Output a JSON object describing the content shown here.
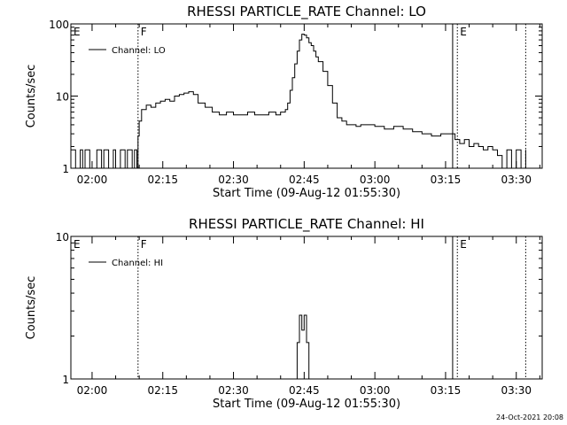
{
  "footer": {
    "timestamp": "24-Oct-2021 20:08"
  },
  "chart_data": [
    {
      "type": "line",
      "title": "RHESSI PARTICLE_RATE Channel: LO",
      "xlabel": "Start Time (09-Aug-12 01:55:30)",
      "ylabel": "Counts/sec",
      "yscale": "log",
      "ylim": [
        1,
        100
      ],
      "yticks": [
        {
          "value": 1,
          "label": "1"
        },
        {
          "value": 10,
          "label": "10"
        },
        {
          "value": 100,
          "label": "100"
        }
      ],
      "xlim": [
        "01:55:30",
        "03:35:30"
      ],
      "xticks": [
        "02:00",
        "02:15",
        "02:30",
        "02:45",
        "03:00",
        "03:15",
        "03:30"
      ],
      "legend": {
        "label": "Channel: LO",
        "position": "top-left"
      },
      "series": [
        {
          "name": "Channel: LO",
          "x": [
            "01:55:30",
            "01:56:30",
            "01:57:30",
            "01:58:00",
            "01:58:30",
            "01:59:30",
            "02:00:00",
            "02:01:00",
            "02:02:00",
            "02:02:30",
            "02:03:30",
            "02:04:30",
            "02:05:00",
            "02:06:00",
            "02:07:00",
            "02:07:30",
            "02:08:30",
            "02:09:00",
            "02:09:30",
            "02:09:45",
            "02:10:00",
            "02:10:30",
            "02:11:30",
            "02:12:30",
            "02:13:30",
            "02:14:30",
            "02:15:30",
            "02:16:30",
            "02:17:30",
            "02:18:30",
            "02:19:30",
            "02:20:30",
            "02:21:30",
            "02:22:30",
            "02:24:00",
            "02:25:30",
            "02:27:00",
            "02:28:30",
            "02:30:00",
            "02:31:30",
            "02:33:00",
            "02:34:30",
            "02:36:00",
            "02:37:30",
            "02:39:00",
            "02:40:00",
            "02:41:00",
            "02:41:30",
            "02:42:00",
            "02:42:30",
            "02:43:00",
            "02:43:30",
            "02:44:00",
            "02:44:30",
            "02:45:00",
            "02:45:30",
            "02:46:00",
            "02:46:30",
            "02:47:00",
            "02:47:30",
            "02:48:00",
            "02:49:00",
            "02:50:00",
            "02:51:00",
            "02:52:00",
            "02:53:00",
            "02:54:00",
            "02:55:00",
            "02:56:00",
            "02:57:00",
            "02:58:00",
            "03:00:00",
            "03:02:00",
            "03:04:00",
            "03:06:00",
            "03:08:00",
            "03:10:00",
            "03:12:00",
            "03:14:00",
            "03:16:00",
            "03:17:00",
            "03:18:00",
            "03:19:00",
            "03:20:00",
            "03:21:00",
            "03:22:00",
            "03:23:00",
            "03:24:00",
            "03:25:00",
            "03:26:00",
            "03:27:00",
            "03:28:00",
            "03:29:00",
            "03:30:00",
            "03:31:00",
            "03:32:00"
          ],
          "y": [
            1.8,
            1,
            1.8,
            1,
            1.8,
            1,
            1,
            1.8,
            1,
            1.8,
            1,
            1.8,
            1,
            1.8,
            1,
            1.8,
            1,
            1.8,
            1,
            2.8,
            4.5,
            6.5,
            7.5,
            7,
            8,
            8.5,
            9,
            8.5,
            10,
            10.5,
            11,
            11.5,
            10.5,
            8,
            7,
            6,
            5.5,
            6,
            5.5,
            5.5,
            6,
            5.5,
            5.5,
            6,
            5.5,
            6,
            6.5,
            8,
            12,
            18,
            28,
            42,
            60,
            72,
            70,
            64,
            55,
            50,
            42,
            35,
            30,
            22,
            14,
            8,
            5,
            4.5,
            4,
            4,
            3.8,
            4,
            4,
            3.8,
            3.5,
            3.8,
            3.5,
            3.2,
            3,
            2.8,
            3,
            3,
            2.5,
            2.2,
            2.5,
            2,
            2.2,
            2,
            1.8,
            2,
            1.8,
            1.5,
            1,
            1.8,
            1,
            1.8,
            1,
            1.8
          ]
        }
      ],
      "annotations": [
        {
          "label": "E",
          "time": "01:55:30",
          "style": "text"
        },
        {
          "label": "F",
          "time": "02:09:45",
          "style": "dotted"
        },
        {
          "label": "",
          "time": "03:16:30",
          "style": "solid"
        },
        {
          "label": "E",
          "time": "03:17:30",
          "style": "dotted"
        },
        {
          "label": "",
          "time": "03:32:00",
          "style": "dotted"
        }
      ]
    },
    {
      "type": "line",
      "title": "RHESSI PARTICLE_RATE Channel: HI",
      "xlabel": "Start Time (09-Aug-12 01:55:30)",
      "ylabel": "Counts/sec",
      "yscale": "log",
      "ylim": [
        1,
        10
      ],
      "yticks": [
        {
          "value": 1,
          "label": "1"
        },
        {
          "value": 10,
          "label": "10"
        }
      ],
      "xlim": [
        "01:55:30",
        "03:35:30"
      ],
      "xticks": [
        "02:00",
        "02:15",
        "02:30",
        "02:45",
        "03:00",
        "03:15",
        "03:30"
      ],
      "legend": {
        "label": "Channel: HI",
        "position": "top-left"
      },
      "series": [
        {
          "name": "Channel: HI",
          "x": [
            "01:55:30",
            "02:43:00",
            "02:43:30",
            "02:44:00",
            "02:44:30",
            "02:45:00",
            "02:45:30",
            "02:46:00",
            "03:35:30"
          ],
          "y": [
            1,
            1,
            1.8,
            2.8,
            2.2,
            2.8,
            1.8,
            1,
            1
          ]
        }
      ],
      "annotations": [
        {
          "label": "E",
          "time": "01:55:30",
          "style": "text"
        },
        {
          "label": "F",
          "time": "02:09:45",
          "style": "dotted"
        },
        {
          "label": "",
          "time": "03:16:30",
          "style": "solid"
        },
        {
          "label": "E",
          "time": "03:17:30",
          "style": "dotted"
        },
        {
          "label": "",
          "time": "03:32:00",
          "style": "dotted"
        }
      ]
    }
  ]
}
